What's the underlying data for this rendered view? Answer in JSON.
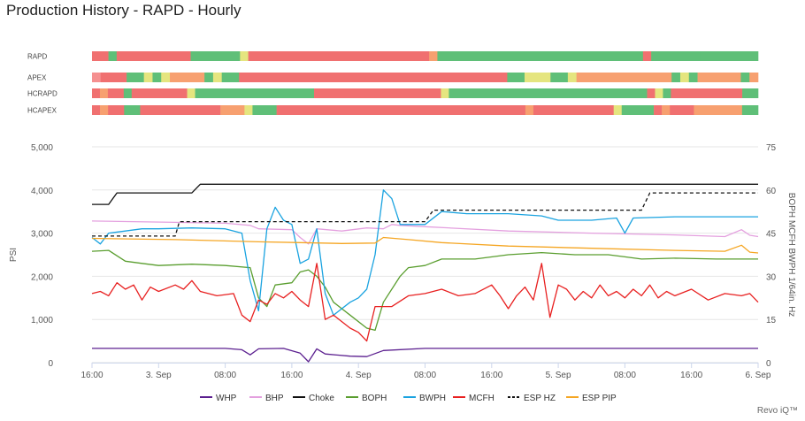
{
  "title": "Production History - RAPD - Hourly",
  "footer": "Revo iQ™",
  "colors": {
    "green": "#5fbf78",
    "red": "#f07070",
    "orange": "#f7a070",
    "yellow": "#e5e57f",
    "salmon": "#f59090"
  },
  "chart_data": {
    "type": "line",
    "title": "Production History - RAPD - Hourly",
    "ylabel_left": "PSI",
    "ylabel_right": "BOPH MCFH BWPH 1/64in. Hz",
    "yleft_lim": [
      0,
      5000
    ],
    "yleft_ticks": [
      "0",
      "1,000",
      "2,000",
      "3,000",
      "4,000",
      "5,000"
    ],
    "yright_lim": [
      0,
      75
    ],
    "yright_ticks": [
      "0",
      "15",
      "30",
      "45",
      "60",
      "75"
    ],
    "x_ticks": [
      "16:00",
      "3. Sep",
      "08:00",
      "16:00",
      "4. Sep",
      "08:00",
      "16:00",
      "5. Sep",
      "08:00",
      "16:00",
      "6. Sep"
    ],
    "x_hours": [
      0,
      8,
      16,
      24,
      32,
      40,
      48,
      56,
      64,
      72,
      80
    ],
    "x_range_hours": [
      0,
      80
    ],
    "grid": true,
    "legend_position": "bottom",
    "status_rows": [
      {
        "label": "RAPD",
        "segments": [
          [
            "red",
            2
          ],
          [
            "green",
            1
          ],
          [
            "red",
            9
          ],
          [
            "green",
            6
          ],
          [
            "yellow",
            1
          ],
          [
            "red",
            22
          ],
          [
            "orange",
            1
          ],
          [
            "green",
            25
          ],
          [
            "red",
            1
          ],
          [
            "green",
            6
          ],
          [
            "green",
            1
          ],
          [
            "green",
            6
          ]
        ]
      },
      {
        "label": "APEX",
        "segments": [
          [
            "salmon",
            1
          ],
          [
            "red",
            3
          ],
          [
            "green",
            2
          ],
          [
            "yellow",
            1
          ],
          [
            "green",
            1
          ],
          [
            "yellow",
            1
          ],
          [
            "orange",
            4
          ],
          [
            "green",
            1
          ],
          [
            "yellow",
            1
          ],
          [
            "green",
            2
          ],
          [
            "red",
            31
          ],
          [
            "green",
            2
          ],
          [
            "yellow",
            3
          ],
          [
            "green",
            2
          ],
          [
            "yellow",
            1
          ],
          [
            "orange",
            11
          ],
          [
            "green",
            1
          ],
          [
            "yellow",
            1
          ],
          [
            "green",
            1
          ],
          [
            "orange",
            5
          ],
          [
            "green",
            1
          ],
          [
            "orange",
            1
          ]
        ]
      },
      {
        "label": "HCRAPD",
        "segments": [
          [
            "red",
            1
          ],
          [
            "orange",
            1
          ],
          [
            "red",
            2
          ],
          [
            "green",
            1
          ],
          [
            "red",
            7
          ],
          [
            "yellow",
            1
          ],
          [
            "green",
            15
          ],
          [
            "red",
            16
          ],
          [
            "yellow",
            1
          ],
          [
            "green",
            25
          ],
          [
            "red",
            1
          ],
          [
            "yellow",
            1
          ],
          [
            "green",
            1
          ],
          [
            "red",
            9
          ],
          [
            "green",
            2
          ]
        ]
      },
      {
        "label": "HCAPEX",
        "segments": [
          [
            "red",
            1
          ],
          [
            "orange",
            1
          ],
          [
            "red",
            2
          ],
          [
            "green",
            2
          ],
          [
            "red",
            10
          ],
          [
            "orange",
            3
          ],
          [
            "yellow",
            1
          ],
          [
            "green",
            3
          ],
          [
            "red",
            31
          ],
          [
            "orange",
            1
          ],
          [
            "red",
            10
          ],
          [
            "yellow",
            1
          ],
          [
            "green",
            4
          ],
          [
            "red",
            1
          ],
          [
            "orange",
            1
          ],
          [
            "red",
            3
          ],
          [
            "orange",
            6
          ],
          [
            "green",
            2
          ]
        ]
      }
    ],
    "series": [
      {
        "name": "WHP",
        "axis": "left",
        "color": "#5b1f8f",
        "dash": false,
        "points": [
          [
            0,
            330
          ],
          [
            16,
            330
          ],
          [
            18,
            300
          ],
          [
            19,
            180
          ],
          [
            20,
            320
          ],
          [
            23,
            330
          ],
          [
            25,
            220
          ],
          [
            26,
            20
          ],
          [
            27,
            320
          ],
          [
            28,
            200
          ],
          [
            31,
            150
          ],
          [
            33,
            140
          ],
          [
            35,
            280
          ],
          [
            40,
            330
          ],
          [
            44,
            330
          ],
          [
            60,
            330
          ],
          [
            80,
            330
          ]
        ]
      },
      {
        "name": "BHP",
        "axis": "left",
        "color": "#e4a0df",
        "dash": false,
        "points": [
          [
            0,
            3280
          ],
          [
            10,
            3250
          ],
          [
            16,
            3230
          ],
          [
            19,
            3180
          ],
          [
            20,
            3100
          ],
          [
            24,
            3080
          ],
          [
            25,
            2900
          ],
          [
            26,
            2750
          ],
          [
            27,
            3100
          ],
          [
            30,
            3050
          ],
          [
            33,
            3120
          ],
          [
            35,
            3100
          ],
          [
            36,
            3200
          ],
          [
            37,
            3180
          ],
          [
            40,
            3150
          ],
          [
            50,
            3050
          ],
          [
            60,
            3000
          ],
          [
            70,
            2960
          ],
          [
            76,
            2920
          ],
          [
            78,
            3080
          ],
          [
            79,
            2950
          ],
          [
            80,
            2920
          ]
        ]
      },
      {
        "name": "Choke",
        "axis": "right",
        "color": "#111111",
        "dash": false,
        "points": [
          [
            0,
            55
          ],
          [
            2,
            55
          ],
          [
            3,
            59
          ],
          [
            12,
            59
          ],
          [
            13,
            62
          ],
          [
            80,
            62
          ]
        ]
      },
      {
        "name": "BOPH",
        "axis": "left",
        "color": "#5a9e2f",
        "dash": false,
        "points": [
          [
            0,
            2580
          ],
          [
            2,
            2600
          ],
          [
            4,
            2350
          ],
          [
            6,
            2300
          ],
          [
            8,
            2250
          ],
          [
            12,
            2280
          ],
          [
            16,
            2250
          ],
          [
            19,
            2200
          ],
          [
            20,
            1500
          ],
          [
            21,
            1300
          ],
          [
            22,
            1800
          ],
          [
            24,
            1850
          ],
          [
            25,
            2100
          ],
          [
            26,
            2150
          ],
          [
            27,
            2000
          ],
          [
            28,
            1750
          ],
          [
            29,
            1400
          ],
          [
            31,
            1100
          ],
          [
            33,
            800
          ],
          [
            34,
            750
          ],
          [
            35,
            1400
          ],
          [
            37,
            2000
          ],
          [
            38,
            2200
          ],
          [
            40,
            2250
          ],
          [
            42,
            2400
          ],
          [
            46,
            2400
          ],
          [
            50,
            2500
          ],
          [
            54,
            2550
          ],
          [
            58,
            2500
          ],
          [
            62,
            2500
          ],
          [
            64,
            2450
          ],
          [
            66,
            2400
          ],
          [
            70,
            2420
          ],
          [
            75,
            2400
          ],
          [
            80,
            2400
          ]
        ]
      },
      {
        "name": "BWPH",
        "axis": "left",
        "color": "#1aa3e0",
        "dash": false,
        "points": [
          [
            0,
            2900
          ],
          [
            1,
            2750
          ],
          [
            2,
            3000
          ],
          [
            4,
            3050
          ],
          [
            6,
            3100
          ],
          [
            8,
            3100
          ],
          [
            12,
            3120
          ],
          [
            16,
            3100
          ],
          [
            18,
            3000
          ],
          [
            19,
            1900
          ],
          [
            20,
            1200
          ],
          [
            21,
            3100
          ],
          [
            22,
            3600
          ],
          [
            23,
            3300
          ],
          [
            24,
            3200
          ],
          [
            25,
            2300
          ],
          [
            26,
            2400
          ],
          [
            27,
            3100
          ],
          [
            28,
            1600
          ],
          [
            29,
            1100
          ],
          [
            31,
            1400
          ],
          [
            32,
            1500
          ],
          [
            33,
            1700
          ],
          [
            34,
            2500
          ],
          [
            35,
            4000
          ],
          [
            36,
            3800
          ],
          [
            37,
            3200
          ],
          [
            40,
            3200
          ],
          [
            42,
            3500
          ],
          [
            45,
            3450
          ],
          [
            50,
            3450
          ],
          [
            54,
            3400
          ],
          [
            56,
            3300
          ],
          [
            60,
            3300
          ],
          [
            63,
            3350
          ],
          [
            64,
            3000
          ],
          [
            65,
            3350
          ],
          [
            70,
            3380
          ],
          [
            80,
            3380
          ]
        ]
      },
      {
        "name": "MCFH",
        "axis": "left",
        "color": "#e82020",
        "dash": false,
        "points": [
          [
            0,
            1600
          ],
          [
            1,
            1650
          ],
          [
            2,
            1550
          ],
          [
            3,
            1850
          ],
          [
            4,
            1700
          ],
          [
            5,
            1800
          ],
          [
            6,
            1450
          ],
          [
            7,
            1750
          ],
          [
            8,
            1650
          ],
          [
            10,
            1800
          ],
          [
            11,
            1700
          ],
          [
            12,
            1900
          ],
          [
            13,
            1650
          ],
          [
            15,
            1550
          ],
          [
            17,
            1600
          ],
          [
            18,
            1100
          ],
          [
            19,
            950
          ],
          [
            20,
            1450
          ],
          [
            21,
            1350
          ],
          [
            22,
            1600
          ],
          [
            23,
            1500
          ],
          [
            24,
            1650
          ],
          [
            25,
            1450
          ],
          [
            26,
            1300
          ],
          [
            27,
            2300
          ],
          [
            28,
            1000
          ],
          [
            29,
            1100
          ],
          [
            31,
            800
          ],
          [
            32,
            700
          ],
          [
            33,
            500
          ],
          [
            34,
            1300
          ],
          [
            36,
            1300
          ],
          [
            38,
            1550
          ],
          [
            40,
            1600
          ],
          [
            42,
            1700
          ],
          [
            44,
            1550
          ],
          [
            46,
            1600
          ],
          [
            48,
            1800
          ],
          [
            49,
            1550
          ],
          [
            50,
            1250
          ],
          [
            51,
            1550
          ],
          [
            52,
            1750
          ],
          [
            53,
            1450
          ],
          [
            54,
            2300
          ],
          [
            55,
            1050
          ],
          [
            56,
            1800
          ],
          [
            57,
            1700
          ],
          [
            58,
            1450
          ],
          [
            59,
            1650
          ],
          [
            60,
            1500
          ],
          [
            61,
            1800
          ],
          [
            62,
            1550
          ],
          [
            63,
            1650
          ],
          [
            64,
            1500
          ],
          [
            65,
            1700
          ],
          [
            66,
            1550
          ],
          [
            67,
            1800
          ],
          [
            68,
            1500
          ],
          [
            69,
            1650
          ],
          [
            70,
            1550
          ],
          [
            72,
            1700
          ],
          [
            74,
            1450
          ],
          [
            76,
            1600
          ],
          [
            78,
            1550
          ],
          [
            79,
            1600
          ],
          [
            80,
            1400
          ]
        ]
      },
      {
        "name": "ESP HZ",
        "axis": "right",
        "color": "#111111",
        "dash": true,
        "points": [
          [
            0,
            44
          ],
          [
            10,
            44
          ],
          [
            10.5,
            49
          ],
          [
            40,
            49
          ],
          [
            41,
            53
          ],
          [
            66,
            53
          ],
          [
            67,
            59
          ],
          [
            80,
            59
          ]
        ]
      },
      {
        "name": "ESP PIP",
        "axis": "left",
        "color": "#f5a623",
        "dash": false,
        "points": [
          [
            0,
            2880
          ],
          [
            10,
            2850
          ],
          [
            20,
            2800
          ],
          [
            25,
            2780
          ],
          [
            30,
            2760
          ],
          [
            34,
            2770
          ],
          [
            35,
            2900
          ],
          [
            38,
            2850
          ],
          [
            42,
            2780
          ],
          [
            50,
            2700
          ],
          [
            60,
            2650
          ],
          [
            70,
            2600
          ],
          [
            76,
            2580
          ],
          [
            78,
            2720
          ],
          [
            79,
            2560
          ],
          [
            80,
            2540
          ]
        ]
      }
    ]
  }
}
